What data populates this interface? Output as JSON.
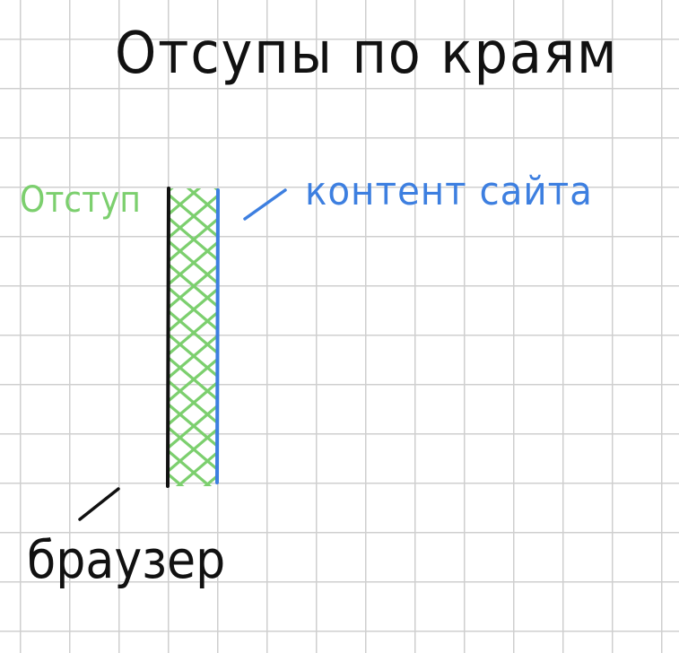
{
  "title": "Отсупы по краям",
  "labels": {
    "margin": "Отступ",
    "content": "контент сайта",
    "browser": "браузер"
  },
  "colors": {
    "ink": "#111111",
    "margin": "#7ccf6e",
    "content": "#3d7fe0",
    "grid": "#cfcfcf"
  }
}
